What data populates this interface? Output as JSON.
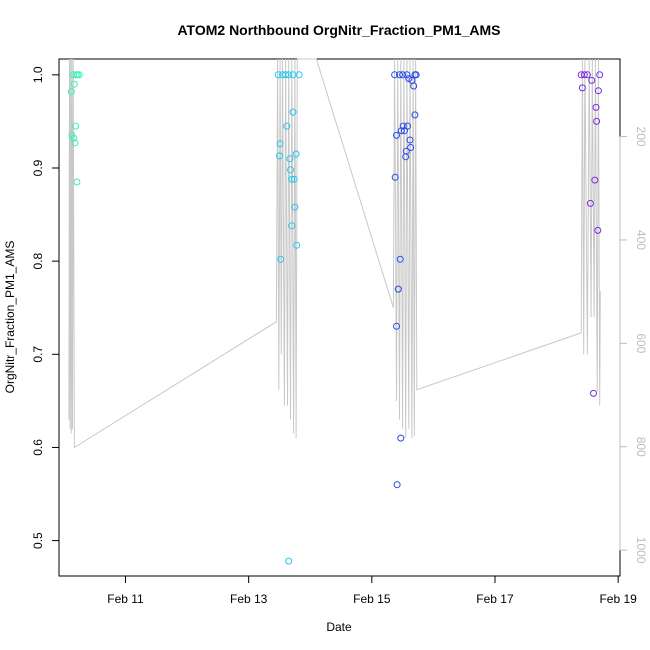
{
  "chart_data": {
    "type": "scatter",
    "title": "ATOM2 Northbound OrgNitr_Fraction_PM1_AMS",
    "xlabel": "Date",
    "ylabel": "OrgNitr_Fraction_PM1_AMS",
    "x_ticks": [
      {
        "label": "Feb 11",
        "value": 11.0
      },
      {
        "label": "Feb 13",
        "value": 13.0
      },
      {
        "label": "Feb 15",
        "value": 15.0
      },
      {
        "label": "Feb 17",
        "value": 17.0
      },
      {
        "label": "Feb 19",
        "value": 19.0
      }
    ],
    "xlim": [
      9.92,
      19.03
    ],
    "ylim": [
      0.462,
      1.017
    ],
    "y_ticks": [
      "0.5",
      "0.6",
      "0.7",
      "0.8",
      "0.9",
      "1.0"
    ],
    "y2_ticks": [
      "200",
      "400",
      "600",
      "800",
      "1000"
    ],
    "y2lim": [
      1050,
      50
    ],
    "colors": {
      "groupA": "#3ef0b4",
      "groupB": "#27c6ee",
      "groupC": "#2a4be8",
      "groupD": "#7b2be6",
      "altitude_line": "#c8c8c8",
      "right_axis": "#bdbdbd"
    },
    "series": [
      {
        "color_key": "groupA",
        "points": [
          [
            10.12,
            0.982
          ],
          [
            10.13,
            0.935
          ],
          [
            10.15,
            1.0
          ],
          [
            10.17,
            0.99
          ],
          [
            10.16,
            0.932
          ],
          [
            10.18,
            0.927
          ],
          [
            10.19,
            0.945
          ],
          [
            10.2,
            1.0
          ],
          [
            10.21,
            0.885
          ],
          [
            10.22,
            1.0
          ],
          [
            10.25,
            1.0
          ]
        ]
      },
      {
        "color_key": "groupB",
        "points": [
          [
            13.48,
            1.0
          ],
          [
            13.5,
            0.913
          ],
          [
            13.51,
            0.926
          ],
          [
            13.52,
            0.802
          ],
          [
            13.55,
            1.0
          ],
          [
            13.6,
            1.0
          ],
          [
            13.62,
            0.945
          ],
          [
            13.65,
            1.0
          ],
          [
            13.65,
            0.478
          ],
          [
            13.67,
            0.91
          ],
          [
            13.68,
            0.898
          ],
          [
            13.7,
            0.888
          ],
          [
            13.7,
            0.838
          ],
          [
            13.72,
            0.96
          ],
          [
            13.72,
            1.0
          ],
          [
            13.74,
            0.888
          ],
          [
            13.75,
            0.858
          ],
          [
            13.77,
            0.915
          ],
          [
            13.78,
            0.817
          ],
          [
            13.82,
            1.0
          ]
        ]
      },
      {
        "color_key": "groupC",
        "points": [
          [
            15.37,
            1.0
          ],
          [
            15.38,
            0.89
          ],
          [
            15.4,
            0.935
          ],
          [
            15.4,
            0.73
          ],
          [
            15.41,
            0.56
          ],
          [
            15.43,
            0.77
          ],
          [
            15.45,
            1.0
          ],
          [
            15.46,
            0.802
          ],
          [
            15.47,
            0.61
          ],
          [
            15.48,
            0.94
          ],
          [
            15.5,
            1.0
          ],
          [
            15.51,
            0.945
          ],
          [
            15.53,
            0.94
          ],
          [
            15.55,
            0.912
          ],
          [
            15.56,
            0.918
          ],
          [
            15.57,
            1.0
          ],
          [
            15.58,
            0.945
          ],
          [
            15.6,
            0.996
          ],
          [
            15.62,
            0.93
          ],
          [
            15.63,
            0.922
          ],
          [
            15.65,
            0.994
          ],
          [
            15.68,
            0.988
          ],
          [
            15.7,
            1.0
          ],
          [
            15.7,
            0.957
          ],
          [
            15.72,
            1.0
          ]
        ]
      },
      {
        "color_key": "groupD",
        "points": [
          [
            18.4,
            1.0
          ],
          [
            18.42,
            0.986
          ],
          [
            18.45,
            1.0
          ],
          [
            18.5,
            1.0
          ],
          [
            18.55,
            0.862
          ],
          [
            18.57,
            0.994
          ],
          [
            18.6,
            0.658
          ],
          [
            18.62,
            0.887
          ],
          [
            18.64,
            0.965
          ],
          [
            18.65,
            0.95
          ],
          [
            18.67,
            0.833
          ],
          [
            18.68,
            0.983
          ],
          [
            18.7,
            1.0
          ]
        ]
      }
    ],
    "altitude_track": [
      [
        10.08,
        0.63
      ],
      [
        10.09,
        1.02
      ],
      [
        10.1,
        0.62
      ],
      [
        10.11,
        1.02
      ],
      [
        10.12,
        0.615
      ],
      [
        10.13,
        1.02
      ],
      [
        10.14,
        0.62
      ],
      [
        10.15,
        1.02
      ],
      [
        10.17,
        0.6
      ],
      [
        13.45,
        0.735
      ],
      [
        13.47,
        1.02
      ],
      [
        13.49,
        0.662
      ],
      [
        13.51,
        1.02
      ],
      [
        13.53,
        0.7
      ],
      [
        13.55,
        1.02
      ],
      [
        13.58,
        0.645
      ],
      [
        13.6,
        1.02
      ],
      [
        13.63,
        0.645
      ],
      [
        13.65,
        1.02
      ],
      [
        13.68,
        0.63
      ],
      [
        13.7,
        1.02
      ],
      [
        13.73,
        0.615
      ],
      [
        13.75,
        1.02
      ],
      [
        13.77,
        0.61
      ],
      [
        13.79,
        1.02
      ],
      [
        14.1,
        1.02
      ],
      [
        15.35,
        0.75
      ],
      [
        15.37,
        1.02
      ],
      [
        15.4,
        0.65
      ],
      [
        15.42,
        1.02
      ],
      [
        15.45,
        0.63
      ],
      [
        15.47,
        1.02
      ],
      [
        15.5,
        0.62
      ],
      [
        15.52,
        1.02
      ],
      [
        15.55,
        0.61
      ],
      [
        15.57,
        1.02
      ],
      [
        15.6,
        0.62
      ],
      [
        15.62,
        1.02
      ],
      [
        15.65,
        0.61
      ],
      [
        15.67,
        1.02
      ],
      [
        15.69,
        0.612
      ],
      [
        15.71,
        1.02
      ],
      [
        15.73,
        0.662
      ],
      [
        18.4,
        0.723
      ],
      [
        18.42,
        1.02
      ],
      [
        18.44,
        0.7
      ],
      [
        18.46,
        1.02
      ],
      [
        18.5,
        0.7
      ],
      [
        18.53,
        1.02
      ],
      [
        18.56,
        0.74
      ],
      [
        18.58,
        1.02
      ],
      [
        18.61,
        0.74
      ],
      [
        18.63,
        1.02
      ],
      [
        18.66,
        0.66
      ],
      [
        18.68,
        1.02
      ],
      [
        18.7,
        0.645
      ],
      [
        18.71,
        0.768
      ]
    ]
  }
}
